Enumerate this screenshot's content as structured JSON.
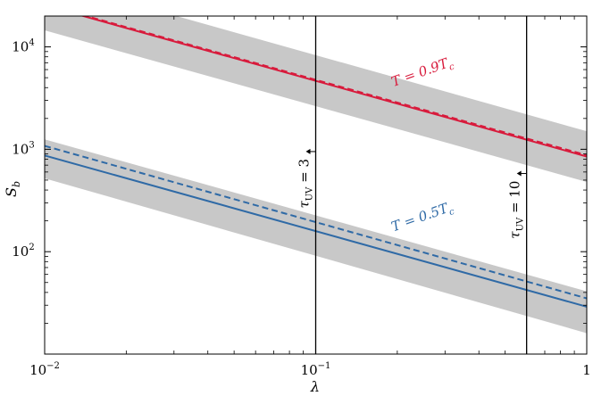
{
  "chart_data": {
    "type": "line",
    "title": "",
    "xlabel": "λ",
    "ylabel": "S_b",
    "x_scale": "log",
    "y_scale": "log",
    "xlim": [
      0.01,
      1
    ],
    "ylim": [
      10,
      20000
    ],
    "x_ticks": [
      {
        "value": 0.01,
        "base": "10",
        "exp": "−2"
      },
      {
        "value": 0.1,
        "base": "10",
        "exp": "−1"
      },
      {
        "value": 1,
        "base": "1",
        "exp": ""
      }
    ],
    "y_ticks": [
      {
        "value": 100,
        "base": "10",
        "exp": "2"
      },
      {
        "value": 1000,
        "base": "10",
        "exp": "3"
      },
      {
        "value": 10000,
        "base": "10",
        "exp": "4"
      }
    ],
    "colors": {
      "red": "#d81b3c",
      "blue": "#2f6aa6",
      "band": "#c8c8c8"
    },
    "series": [
      {
        "name": "T = 0.9T_c",
        "color": "#d81b3c",
        "solid": {
          "x0": 0.01,
          "y0": 25500,
          "x1": 1,
          "y1": 850
        },
        "dashed": {
          "x0": 0.01,
          "y0": 26000,
          "x1": 1,
          "y1": 875
        },
        "band": {
          "x0": 0.01,
          "lower0": 14500,
          "upper0": 46000,
          "x1": 1,
          "lower1": 480,
          "upper1": 1500
        }
      },
      {
        "name": "T = 0.5T_c",
        "color": "#2f6aa6",
        "solid": {
          "x0": 0.01,
          "y0": 870,
          "x1": 1,
          "y1": 29
        },
        "dashed": {
          "x0": 0.01,
          "y0": 1080,
          "x1": 1,
          "y1": 35
        },
        "band": {
          "x0": 0.01,
          "lower0": 520,
          "upper0": 1250,
          "x1": 1,
          "lower1": 16,
          "upper1": 41
        }
      }
    ],
    "vlines": [
      {
        "x": 0.1,
        "label": "τ",
        "sub": "UV",
        "tail": " = 3",
        "arrow_y": 950
      },
      {
        "x": 0.6,
        "label": "τ",
        "sub": "UV",
        "tail": " = 10",
        "arrow_y": 580
      }
    ],
    "annotations": [
      {
        "text": "T = 0.9T",
        "sub": "c",
        "color": "#d81b3c",
        "x": 0.25,
        "y": 5200,
        "angle": -19.5
      },
      {
        "text": "T = 0.5T",
        "sub": "c",
        "color": "#2f6aa6",
        "x": 0.25,
        "y": 200,
        "angle": -19.5
      }
    ]
  }
}
